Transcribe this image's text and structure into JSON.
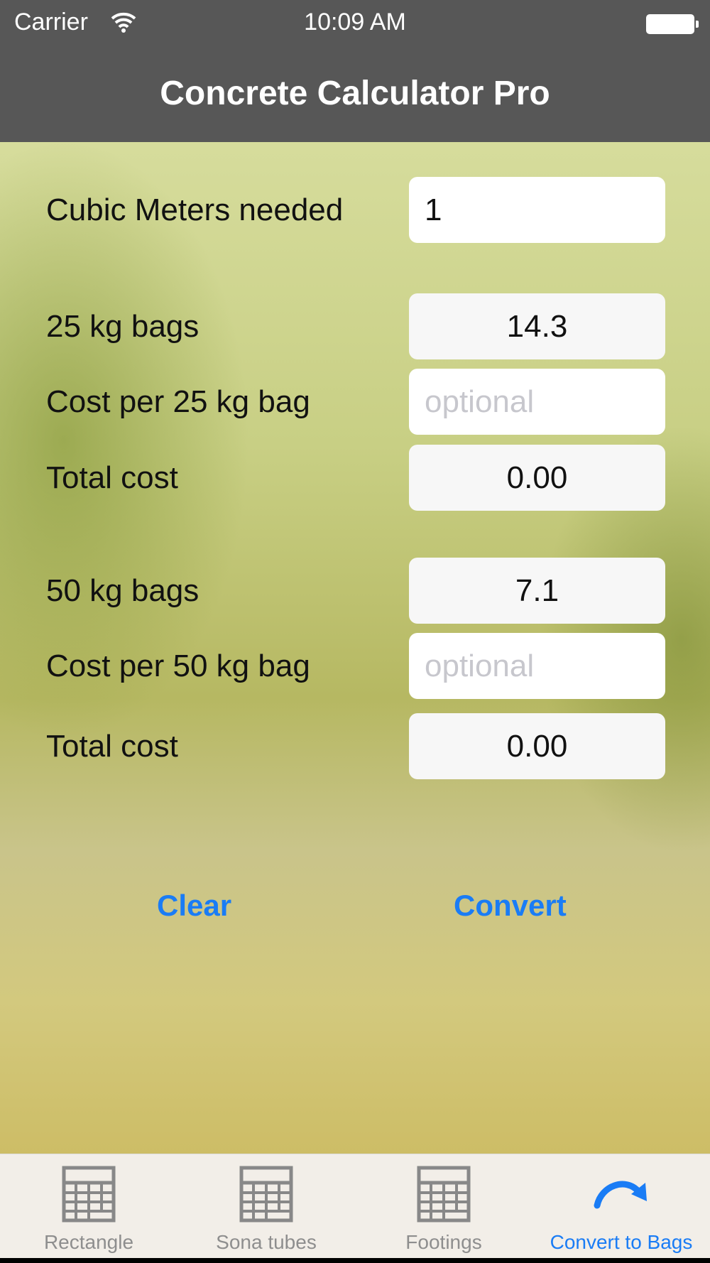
{
  "status_bar": {
    "carrier": "Carrier",
    "time": "10:09 AM"
  },
  "header": {
    "title": "Concrete Calculator Pro"
  },
  "form": {
    "cubic_meters": {
      "label": "Cubic Meters needed",
      "value": "1"
    },
    "bags25": {
      "label": "25 kg bags",
      "value": "14.3"
    },
    "cost25": {
      "label": "Cost per 25 kg bag",
      "placeholder": "optional"
    },
    "total25": {
      "label": "Total cost",
      "value": "0.00"
    },
    "bags50": {
      "label": "50 kg bags",
      "value": "7.1"
    },
    "cost50": {
      "label": "Cost per 50 kg bag",
      "placeholder": "optional"
    },
    "total50": {
      "label": "Total cost",
      "value": "0.00"
    }
  },
  "actions": {
    "clear": "Clear",
    "convert": "Convert"
  },
  "tabs": [
    {
      "label": "Rectangle",
      "icon": "calculator-icon"
    },
    {
      "label": "Sona tubes",
      "icon": "calculator-icon"
    },
    {
      "label": "Footings",
      "icon": "calculator-icon"
    },
    {
      "label": "Convert to Bags",
      "icon": "redo-arrow-icon",
      "active": true
    }
  ],
  "colors": {
    "accent": "#1a7cf5",
    "header": "#575757",
    "tabbar": "#f2eee8"
  }
}
